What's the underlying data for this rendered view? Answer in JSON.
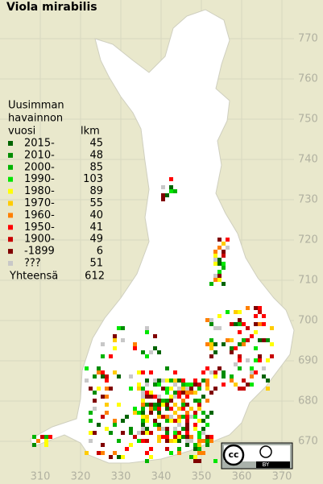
{
  "title": "Viola mirabilis",
  "legend": {
    "header": [
      "Uusimman",
      "havainnon",
      "vuosi"
    ],
    "count_header": "lkm",
    "entries": [
      {
        "label": "2015-",
        "count": 45,
        "color": "#006400"
      },
      {
        "label": "2010-",
        "count": 48,
        "color": "#008c00"
      },
      {
        "label": "2000-",
        "count": 85,
        "color": "#00b400"
      },
      {
        "label": "1990-",
        "count": 103,
        "color": "#00e600"
      },
      {
        "label": "1980-",
        "count": 89,
        "color": "#ffff00"
      },
      {
        "label": "1970-",
        "count": 55,
        "color": "#ffcc00"
      },
      {
        "label": "1960-",
        "count": 40,
        "color": "#ff8000"
      },
      {
        "label": "1950-",
        "count": 41,
        "color": "#ff0000"
      },
      {
        "label": "1900-",
        "count": 49,
        "color": "#c80000"
      },
      {
        "label": "-1899",
        "count": 6,
        "color": "#800000"
      },
      {
        "label": "???",
        "count": 51,
        "color": "#c8c8c8"
      }
    ],
    "total_label": "Yhteensä",
    "total": 612
  },
  "map": {
    "yticks": [
      770,
      760,
      750,
      740,
      730,
      720,
      710,
      700,
      690,
      680,
      670
    ],
    "xticks": [
      310,
      320,
      330,
      340,
      350,
      360,
      370
    ]
  },
  "license": {
    "cc": "cc",
    "by": "BY"
  }
}
